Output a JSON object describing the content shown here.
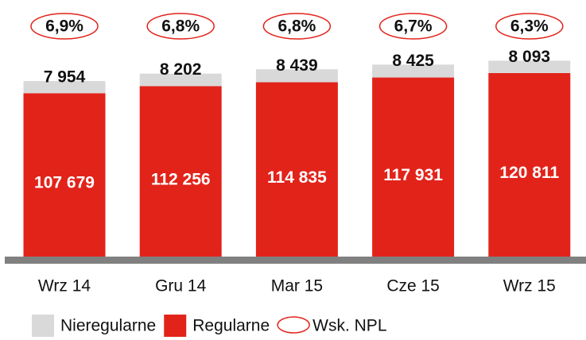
{
  "chart_data": {
    "type": "stacked-bar",
    "categories": [
      "Wrz 14",
      "Gru 14",
      "Mar 15",
      "Cze 15",
      "Wrz 15"
    ],
    "series": [
      {
        "name": "Nieregularne",
        "color": "#d9d9d9",
        "values": [
          7954,
          8202,
          8439,
          8425,
          8093
        ],
        "value_labels": [
          "7 954",
          "8 202",
          "8 439",
          "8 425",
          "8 093"
        ]
      },
      {
        "name": "Regularne",
        "color": "#e2231a",
        "values": [
          107679,
          112256,
          114835,
          117931,
          120811
        ],
        "value_labels": [
          "107 679",
          "112 256",
          "114 835",
          "117 931",
          "120 811"
        ]
      },
      {
        "name": "Wsk. NPL",
        "type": "ellipse",
        "color": "#e2231a",
        "values": [
          6.9,
          6.8,
          6.8,
          6.7,
          6.3
        ],
        "value_labels": [
          "6,9%",
          "6,8%",
          "6,8%",
          "6,7%",
          "6,3%"
        ]
      }
    ],
    "ylim": [
      0,
      140000
    ]
  }
}
